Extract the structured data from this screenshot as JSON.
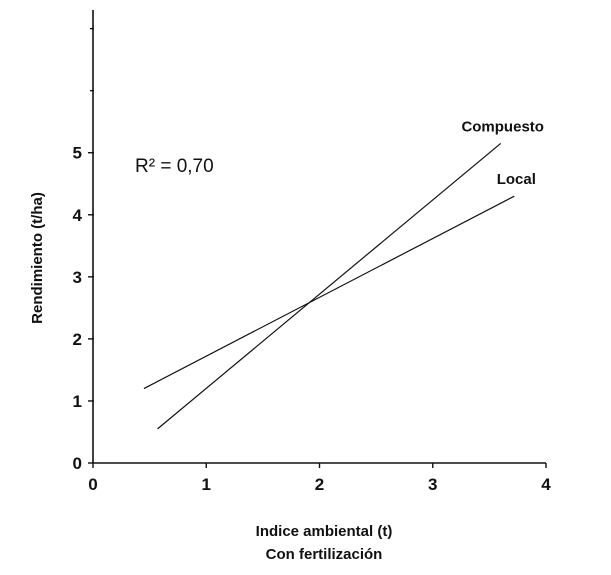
{
  "chart_data": {
    "type": "line",
    "title": "",
    "xlabel": "Indice ambiental (t)",
    "xlabel2": "Con fertilización",
    "ylabel": "Rendimiento (t/ha)",
    "xlim": [
      0,
      4
    ],
    "ylim": [
      0,
      7.3
    ],
    "xticks": [
      "0",
      "1",
      "2",
      "3",
      "4"
    ],
    "yticks": [
      "0",
      "1",
      "2",
      "3",
      "4",
      "5"
    ],
    "annotation": "R² = 0,70",
    "grid": false,
    "series": [
      {
        "name": "Compuesto",
        "x": [
          0.57,
          3.6
        ],
        "y": [
          0.55,
          5.15
        ]
      },
      {
        "name": "Local",
        "x": [
          0.45,
          3.72
        ],
        "y": [
          1.2,
          4.3
        ]
      }
    ]
  }
}
